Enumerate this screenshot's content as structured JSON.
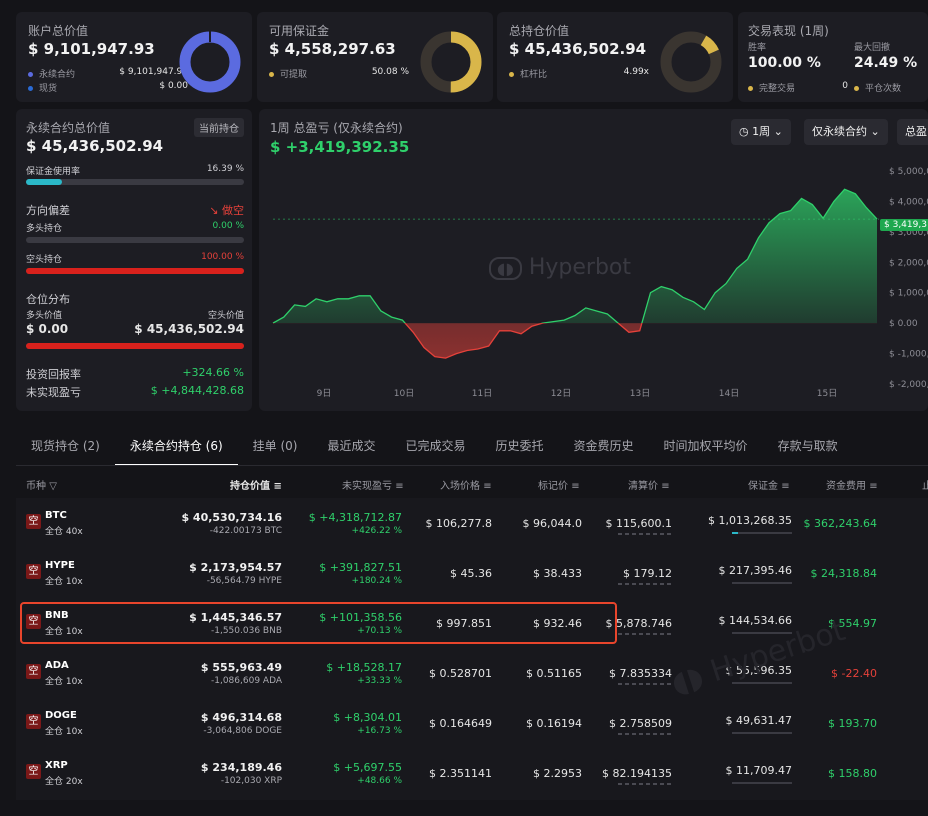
{
  "summary": {
    "account_total": {
      "title": "账户总价值",
      "value": "$ 9,101,947.93",
      "items": [
        {
          "label": "永续合约",
          "value": "$ 9,101,947.93",
          "color": "#5b6be0"
        },
        {
          "label": "现货",
          "value": "$ 0.00",
          "color": "#2a6bd6"
        }
      ]
    },
    "available_margin": {
      "title": "可用保证金",
      "value": "$ 4,558,297.63",
      "items": [
        {
          "label": "可提取",
          "value": "50.08 %",
          "color": "#d9b64a"
        }
      ],
      "ring_fraction": 0.5008
    },
    "total_position": {
      "title": "总持仓价值",
      "value": "$ 45,436,502.94",
      "items": [
        {
          "label": "杠杆比",
          "value": "4.99x",
          "color": "#d9b64a"
        }
      ],
      "ring_fraction": 0.1
    },
    "trade_perf": {
      "title": "交易表现 (1周)",
      "win_rate_label": "胜率",
      "win_rate": "100.00 %",
      "max_drawdown_label": "最大回撤",
      "max_drawdown": "24.49 %",
      "completed_label": "完整交易",
      "completed_value": "0",
      "close_label": "平仓次数",
      "color": "#d9b64a"
    }
  },
  "perp": {
    "title": "永续合约总价值",
    "tag": "当前持仓",
    "value": "$ 45,436,502.94",
    "margin_usage_label": "保证金使用率",
    "margin_usage": "16.39 %",
    "margin_usage_fraction": 0.1639,
    "bias_label": "方向偏差",
    "bias_value": "做空",
    "long_label": "多头持仓",
    "long_value": "0.00 %",
    "long_fraction": 0,
    "short_label": "空头持仓",
    "short_value": "100.00 %",
    "short_fraction": 1.0,
    "dist_label": "仓位分布",
    "long_value_label": "多头价值",
    "short_value_label": "空头价值",
    "long_amount": "$ 0.00",
    "short_amount": "$ 45,436,502.94",
    "roi_label": "投资回报率",
    "roi": "+324.66 %",
    "unrealized_label": "未实现盈亏",
    "unrealized": "$ +4,844,428.68"
  },
  "pnl_chart": {
    "title": "1周 总盈亏 (仅永续合约)",
    "value": "$ +3,419,392.35",
    "current_label": "$ 3,419,3",
    "watermark": "Hyperbot",
    "dropdowns": [
      "1周",
      "仅永续合约",
      "总盈"
    ]
  },
  "chart_data": {
    "type": "area",
    "title": "1周 总盈亏 (仅永续合约)",
    "xlabel": "",
    "ylabel": "",
    "x_ticks": [
      "9日",
      "10日",
      "11日",
      "12日",
      "13日",
      "14日",
      "15日"
    ],
    "y_ticks": [
      "$ 5,000,0",
      "$ 4,000,0",
      "$ 3,000,0",
      "$ 2,000,0",
      "$ 1,000,0",
      "$ 0.00",
      "$ -1,000,0",
      "$ -2,000,0"
    ],
    "ylim": [
      -2000000,
      5000000
    ],
    "current_value": 3419392.35,
    "series": [
      {
        "values": [
          0,
          200000,
          600000,
          550000,
          800000,
          700000,
          800000,
          800000,
          900000,
          900000,
          400000,
          200000,
          100000,
          -300000,
          -800000,
          -1100000,
          -1150000,
          -1000000,
          -900000,
          -850000,
          -750000,
          -250000,
          -250000,
          -350000,
          -100000,
          0,
          50000,
          100000,
          250000,
          500000,
          400000,
          300000,
          0,
          -300000,
          -250000,
          1000000,
          1200000,
          1100000,
          850000,
          700000,
          450000,
          1000000,
          1300000,
          1800000,
          2100000,
          2800000,
          3300000,
          3600000,
          3700000,
          4100000,
          3900000,
          3450000,
          4000000,
          4400000,
          4250000,
          3800000,
          3419392
        ]
      }
    ]
  },
  "tabs": [
    "现货持仓 (2)",
    "永续合约持仓 (6)",
    "挂单 (0)",
    "最近成交",
    "已完成交易",
    "历史委托",
    "资金费历史",
    "时间加权平均价",
    "存款与取款"
  ],
  "active_tab": 1,
  "table": {
    "headers": [
      "币种",
      "持仓价值",
      "未实现盈亏",
      "入场价格",
      "标记价",
      "清算价",
      "保证金",
      "资金费用",
      "止"
    ],
    "rows": [
      {
        "badge": "空",
        "symbol": "BTC",
        "lev": "全仓 40x",
        "value": "$ 40,530,734.16",
        "qty": "-422.00173 BTC",
        "pnl": "$ +4,318,712.87",
        "pnl_pct": "+426.22 %",
        "entry": "$ 106,277.8",
        "mark": "$ 96,044.0",
        "liq": "$ 115,600.1",
        "margin": "$ 1,013,268.35",
        "margin_fraction": 0.1,
        "funding": "$ 362,243.64",
        "funding_color": "green"
      },
      {
        "badge": "空",
        "symbol": "HYPE",
        "lev": "全仓 10x",
        "value": "$ 2,173,954.57",
        "qty": "-56,564.79 HYPE",
        "pnl": "$ +391,827.51",
        "pnl_pct": "+180.24 %",
        "entry": "$ 45.36",
        "mark": "$ 38.433",
        "liq": "$ 179.12",
        "margin": "$ 217,395.46",
        "margin_fraction": 0,
        "funding": "$ 24,318.84",
        "funding_color": "green"
      },
      {
        "badge": "空",
        "symbol": "BNB",
        "lev": "全仓 10x",
        "value": "$ 1,445,346.57",
        "qty": "-1,550.036 BNB",
        "pnl": "$ +101,358.56",
        "pnl_pct": "+70.13 %",
        "entry": "$ 997.851",
        "mark": "$ 932.46",
        "liq": "$ 5,878.746",
        "margin": "$ 144,534.66",
        "margin_fraction": 0,
        "funding": "$ 554.97",
        "funding_color": "green",
        "highlight": true
      },
      {
        "badge": "空",
        "symbol": "ADA",
        "lev": "全仓 10x",
        "value": "$ 555,963.49",
        "qty": "-1,086,609 ADA",
        "pnl": "$ +18,528.17",
        "pnl_pct": "+33.33 %",
        "entry": "$ 0.528701",
        "mark": "$ 0.51165",
        "liq": "$ 7.835334",
        "margin": "$ 55,596.35",
        "margin_fraction": 0,
        "funding": "$ -22.40",
        "funding_color": "red"
      },
      {
        "badge": "空",
        "symbol": "DOGE",
        "lev": "全仓 10x",
        "value": "$ 496,314.68",
        "qty": "-3,064,806 DOGE",
        "pnl": "$ +8,304.01",
        "pnl_pct": "+16.73 %",
        "entry": "$ 0.164649",
        "mark": "$ 0.16194",
        "liq": "$ 2.758509",
        "margin": "$ 49,631.47",
        "margin_fraction": 0,
        "funding": "$ 193.70",
        "funding_color": "green"
      },
      {
        "badge": "空",
        "symbol": "XRP",
        "lev": "全仓 20x",
        "value": "$ 234,189.46",
        "qty": "-102,030 XRP",
        "pnl": "$ +5,697.55",
        "pnl_pct": "+48.66 %",
        "entry": "$ 2.351141",
        "mark": "$ 2.2953",
        "liq": "$ 82.194135",
        "margin": "$ 11,709.47",
        "margin_fraction": 0,
        "funding": "$ 158.80",
        "funding_color": "green"
      }
    ]
  }
}
